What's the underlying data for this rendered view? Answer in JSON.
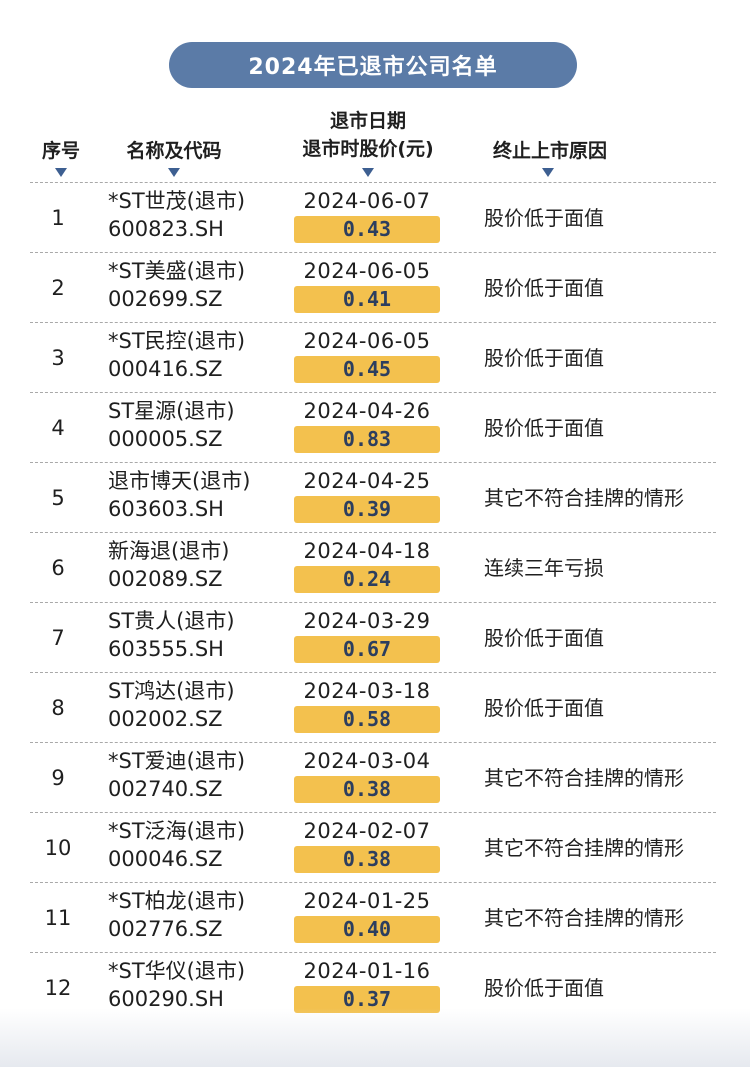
{
  "title": "2024年已退市公司名单",
  "headers": {
    "seq": "序号",
    "name": "名称及代码",
    "date_line1": "退市日期",
    "date_line2": "退市时股价(元)",
    "reason": "终止上市原因"
  },
  "colors": {
    "title_bg": "#5b7ba7",
    "price_bg": "#f3c14e",
    "arrow": "#3d5f91"
  },
  "rows": [
    {
      "seq": "1",
      "name": "*ST世茂(退市)",
      "code": "600823.SH",
      "date": "2024-06-07",
      "price": "0.43",
      "reason": "股价低于面值"
    },
    {
      "seq": "2",
      "name": "*ST美盛(退市)",
      "code": "002699.SZ",
      "date": "2024-06-05",
      "price": "0.41",
      "reason": "股价低于面值"
    },
    {
      "seq": "3",
      "name": "*ST民控(退市)",
      "code": "000416.SZ",
      "date": "2024-06-05",
      "price": "0.45",
      "reason": "股价低于面值"
    },
    {
      "seq": "4",
      "name": "ST星源(退市)",
      "code": "000005.SZ",
      "date": "2024-04-26",
      "price": "0.83",
      "reason": "股价低于面值"
    },
    {
      "seq": "5",
      "name": "退市博天(退市)",
      "code": "603603.SH",
      "date": "2024-04-25",
      "price": "0.39",
      "reason": "其它不符合挂牌的情形"
    },
    {
      "seq": "6",
      "name": "新海退(退市)",
      "code": "002089.SZ",
      "date": "2024-04-18",
      "price": "0.24",
      "reason": "连续三年亏损"
    },
    {
      "seq": "7",
      "name": "ST贵人(退市)",
      "code": "603555.SH",
      "date": "2024-03-29",
      "price": "0.67",
      "reason": "股价低于面值"
    },
    {
      "seq": "8",
      "name": "ST鸿达(退市)",
      "code": "002002.SZ",
      "date": "2024-03-18",
      "price": "0.58",
      "reason": "股价低于面值"
    },
    {
      "seq": "9",
      "name": "*ST爱迪(退市)",
      "code": "002740.SZ",
      "date": "2024-03-04",
      "price": "0.38",
      "reason": "其它不符合挂牌的情形"
    },
    {
      "seq": "10",
      "name": "*ST泛海(退市)",
      "code": "000046.SZ",
      "date": "2024-02-07",
      "price": "0.38",
      "reason": "其它不符合挂牌的情形"
    },
    {
      "seq": "11",
      "name": "*ST柏龙(退市)",
      "code": "002776.SZ",
      "date": "2024-01-25",
      "price": "0.40",
      "reason": "其它不符合挂牌的情形"
    },
    {
      "seq": "12",
      "name": "*ST华仪(退市)",
      "code": "600290.SH",
      "date": "2024-01-16",
      "price": "0.37",
      "reason": "股价低于面值"
    }
  ]
}
